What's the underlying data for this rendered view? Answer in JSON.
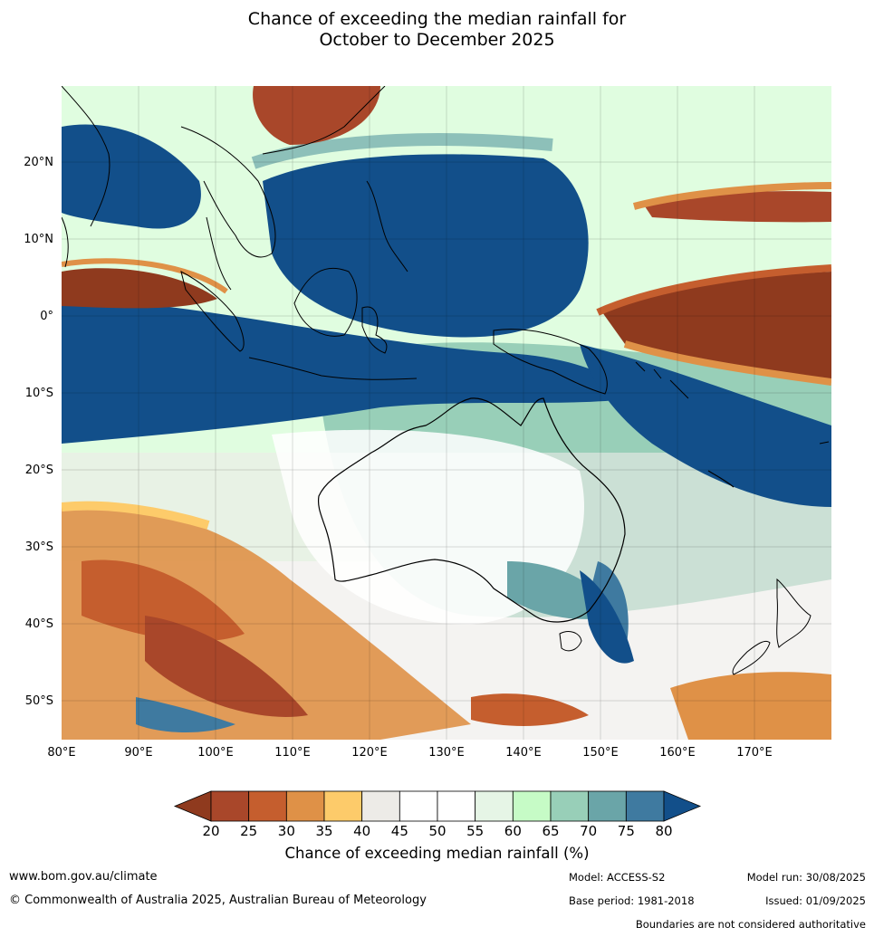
{
  "title": {
    "line1": "Chance of exceeding the median rainfall for",
    "line2": "October to December 2025"
  },
  "map": {
    "lat_labels": [
      "20°N",
      "10°N",
      "0°",
      "10°S",
      "20°S",
      "30°S",
      "40°S",
      "50°S"
    ],
    "lon_labels": [
      "80°E",
      "90°E",
      "100°E",
      "110°E",
      "120°E",
      "130°E",
      "140°E",
      "150°E",
      "160°E",
      "170°E"
    ],
    "extent": {
      "lon": [
        80,
        180
      ],
      "lat": [
        -55,
        30
      ]
    }
  },
  "colorbar": {
    "ticks": [
      "20",
      "25",
      "30",
      "35",
      "40",
      "45",
      "50",
      "55",
      "60",
      "65",
      "70",
      "75",
      "80"
    ],
    "colors": [
      "#8f3a1e",
      "#a9472a",
      "#c55e2e",
      "#df9147",
      "#fdcb6a",
      "#edebe7",
      "#ffffff",
      "#ffffff",
      "#e6f5e6",
      "#c6fbc6",
      "#98cfb8",
      "#6aa5a8",
      "#3f7aa0",
      "#124f8a"
    ],
    "label": "Chance of exceeding median rainfall (%)"
  },
  "footer": {
    "website": "www.bom.gov.au/climate",
    "copyright": "© Commonwealth of Australia 2025, Australian Bureau of Meteorology",
    "model": "Model: ACCESS-S2",
    "base_period": "Base period: 1981-2018",
    "model_run": "Model run: 30/08/2025",
    "issued": "Issued: 01/09/2025",
    "disclaimer": "Boundaries are not considered authoritative"
  }
}
